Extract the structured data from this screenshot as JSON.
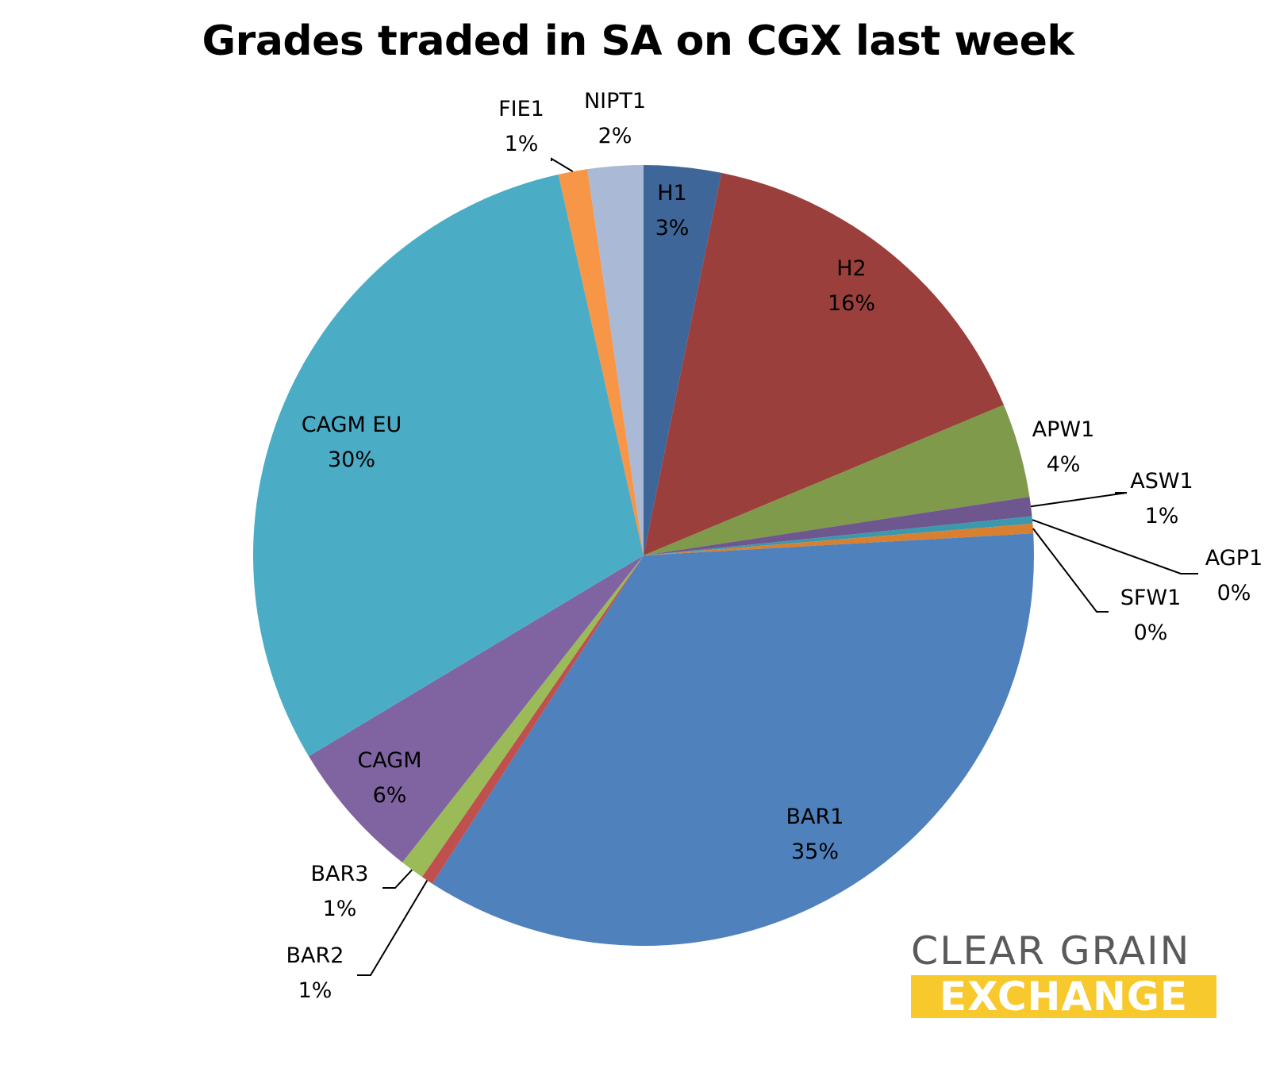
{
  "chart_data": {
    "type": "pie",
    "title": "Grades traded in SA on CGX last week",
    "start_angle_deg": 0,
    "direction": "clockwise",
    "slices": [
      {
        "label": "H1",
        "value": 3.2,
        "display": "3%",
        "color": "#3f6699"
      },
      {
        "label": "H2",
        "value": 15.5,
        "display": "16%",
        "color": "#9b3f3d"
      },
      {
        "label": "APW1",
        "value": 3.9,
        "display": "4%",
        "color": "#7f9a4a"
      },
      {
        "label": "ASW1",
        "value": 0.8,
        "display": "1%",
        "color": "#6e578f"
      },
      {
        "label": "AGP1",
        "value": 0.3,
        "display": "0%",
        "color": "#3b99ad"
      },
      {
        "label": "SFW1",
        "value": 0.4,
        "display": "0%",
        "color": "#d97f30"
      },
      {
        "label": "BAR1",
        "value": 35.0,
        "display": "35%",
        "color": "#4f81bd"
      },
      {
        "label": "BAR2",
        "value": 0.5,
        "display": "1%",
        "color": "#c0504d"
      },
      {
        "label": "BAR3",
        "value": 1.0,
        "display": "1%",
        "color": "#9bbb59"
      },
      {
        "label": "CAGM",
        "value": 5.8,
        "display": "6%",
        "color": "#8064a2"
      },
      {
        "label": "CAGM EU",
        "value": 30.1,
        "display": "30%",
        "color": "#4bacc6"
      },
      {
        "label": "FIE1",
        "value": 1.2,
        "display": "1%",
        "color": "#f79646"
      },
      {
        "label": "NIPT1",
        "value": 2.3,
        "display": "2%",
        "color": "#a9b9d6"
      }
    ]
  },
  "logo": {
    "line1": "CLEAR GRAIN",
    "line2": "EXCHANGE"
  }
}
